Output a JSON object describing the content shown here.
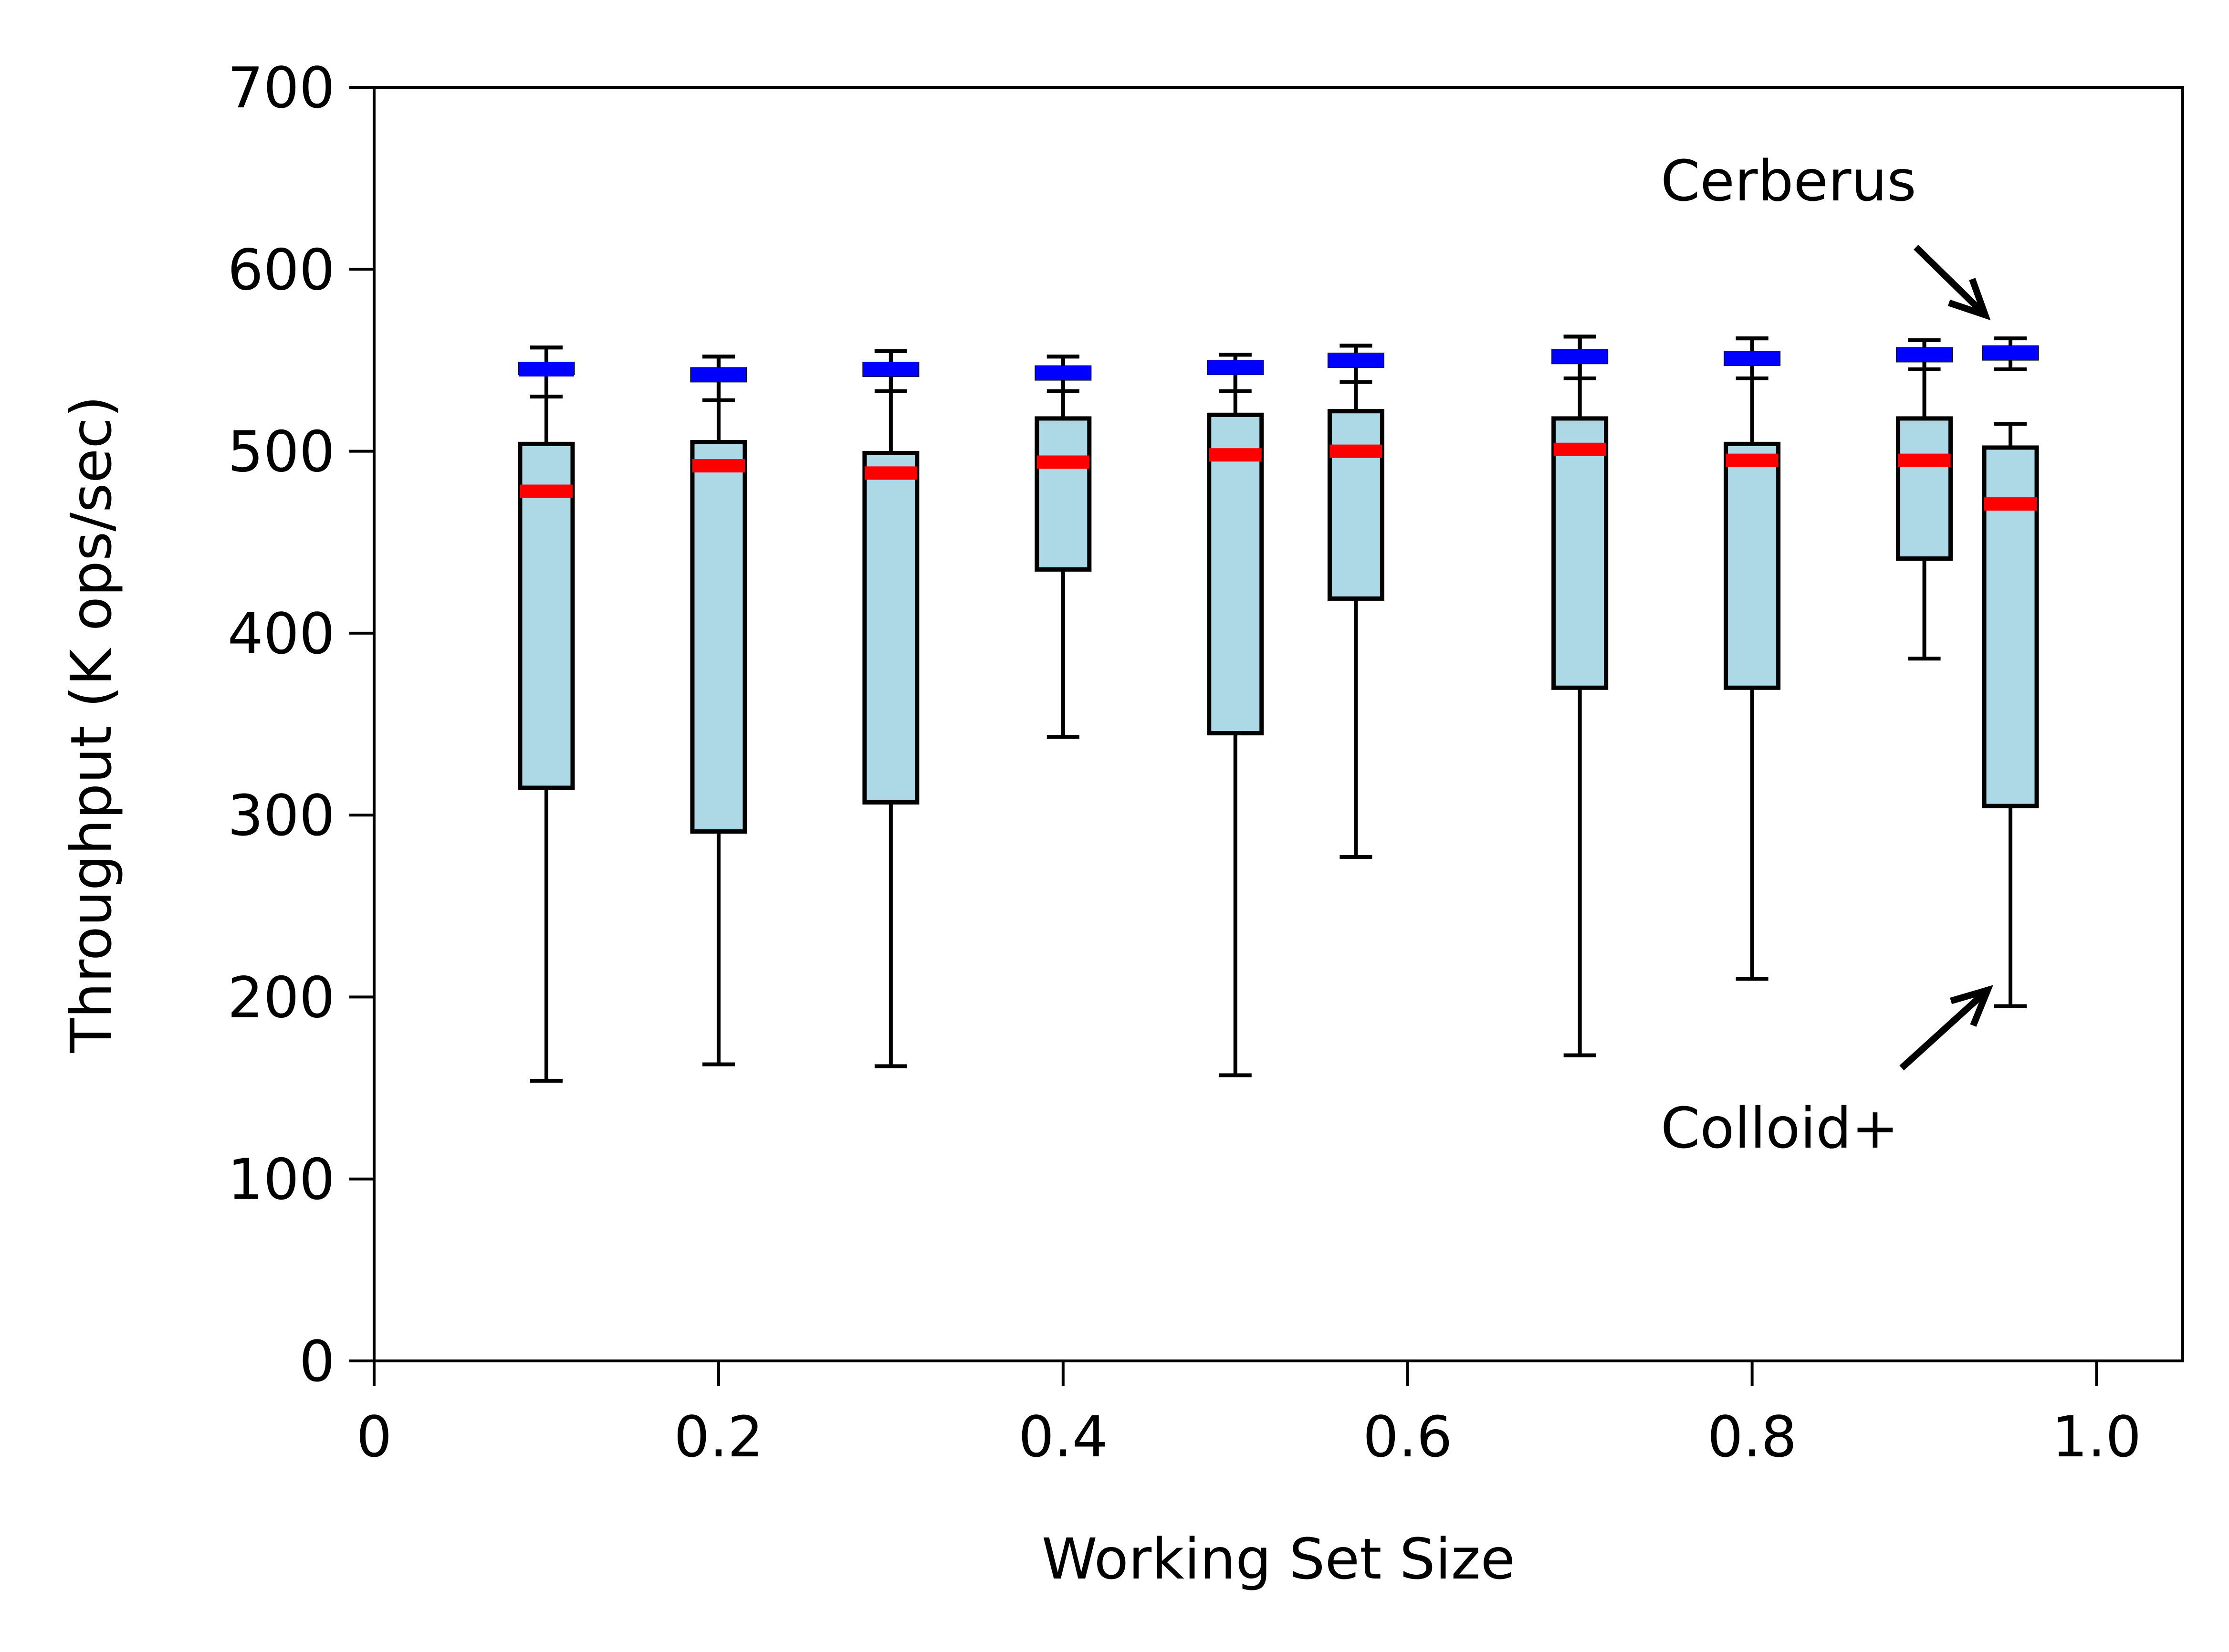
{
  "chart_data": {
    "type": "box",
    "title": "",
    "xlabel": "Working Set Size",
    "ylabel": "Throughput (K ops/sec)",
    "xlim": [
      0,
      1.05
    ],
    "ylim": [
      0,
      700
    ],
    "xticks": [
      0,
      0.2,
      0.4,
      0.6,
      0.8,
      1.0
    ],
    "xtick_labels": [
      "0",
      "0.2",
      "0.4",
      "0.6",
      "0.8",
      "1.0"
    ],
    "yticks": [
      0,
      100,
      200,
      300,
      400,
      500,
      600,
      700
    ],
    "ytick_labels": [
      "0",
      "100",
      "200",
      "300",
      "400",
      "500",
      "600",
      "700"
    ],
    "grid": false,
    "colors": {
      "colloid_fill": "#add8e6",
      "colloid_median": "#ff0000",
      "cerberus_median": "#0000ff",
      "edge": "#000000"
    },
    "series": [
      {
        "name": "Colloid+",
        "boxes": [
          {
            "x": 0.1,
            "whislo": 154,
            "q1": 315,
            "med": 478,
            "q3": 504,
            "whishi": 557
          },
          {
            "x": 0.2,
            "whislo": 163,
            "q1": 291,
            "med": 492,
            "q3": 505,
            "whishi": 552
          },
          {
            "x": 0.3,
            "whislo": 162,
            "q1": 307,
            "med": 488,
            "q3": 499,
            "whishi": 555
          },
          {
            "x": 0.4,
            "whislo": 343,
            "q1": 435,
            "med": 494,
            "q3": 518,
            "whishi": 552
          },
          {
            "x": 0.5,
            "whislo": 157,
            "q1": 345,
            "med": 498,
            "q3": 520,
            "whishi": 553
          },
          {
            "x": 0.57,
            "whislo": 277,
            "q1": 419,
            "med": 500,
            "q3": 522,
            "whishi": 558
          },
          {
            "x": 0.7,
            "whislo": 168,
            "q1": 370,
            "med": 501,
            "q3": 518,
            "whishi": 563
          },
          {
            "x": 0.8,
            "whislo": 210,
            "q1": 370,
            "med": 495,
            "q3": 504,
            "whishi": 562
          },
          {
            "x": 0.9,
            "whislo": 386,
            "q1": 441,
            "med": 495,
            "q3": 518,
            "whishi": 561
          },
          {
            "x": 0.95,
            "whislo": 195,
            "q1": 305,
            "med": 471,
            "q3": 502,
            "whishi": 515
          }
        ]
      },
      {
        "name": "Cerberus",
        "boxes": [
          {
            "x": 0.1,
            "whislo": 530,
            "q1": 543,
            "med": 545,
            "q3": 548,
            "whishi": 557
          },
          {
            "x": 0.2,
            "whislo": 528,
            "q1": 539,
            "med": 542,
            "q3": 545,
            "whishi": 552
          },
          {
            "x": 0.3,
            "whislo": 533,
            "q1": 542,
            "med": 545,
            "q3": 548,
            "whishi": 555
          },
          {
            "x": 0.4,
            "whislo": 533,
            "q1": 540,
            "med": 543,
            "q3": 546,
            "whishi": 552
          },
          {
            "x": 0.5,
            "whislo": 533,
            "q1": 543,
            "med": 546,
            "q3": 549,
            "whishi": 553
          },
          {
            "x": 0.57,
            "whislo": 538,
            "q1": 547,
            "med": 550,
            "q3": 553,
            "whishi": 558
          },
          {
            "x": 0.7,
            "whislo": 540,
            "q1": 549,
            "med": 552,
            "q3": 555,
            "whishi": 563
          },
          {
            "x": 0.8,
            "whislo": 540,
            "q1": 548,
            "med": 551,
            "q3": 554,
            "whishi": 562
          },
          {
            "x": 0.9,
            "whislo": 545,
            "q1": 550,
            "med": 553,
            "q3": 556,
            "whishi": 561
          },
          {
            "x": 0.95,
            "whislo": 545,
            "q1": 551,
            "med": 554,
            "q3": 557,
            "whishi": 562
          }
        ]
      }
    ],
    "annotations": [
      {
        "text": "Cerberus",
        "points_to": {
          "x": 0.95,
          "y": 570
        }
      },
      {
        "text": "Colloid+",
        "points_to": {
          "x": 0.95,
          "y": 205
        }
      }
    ]
  }
}
